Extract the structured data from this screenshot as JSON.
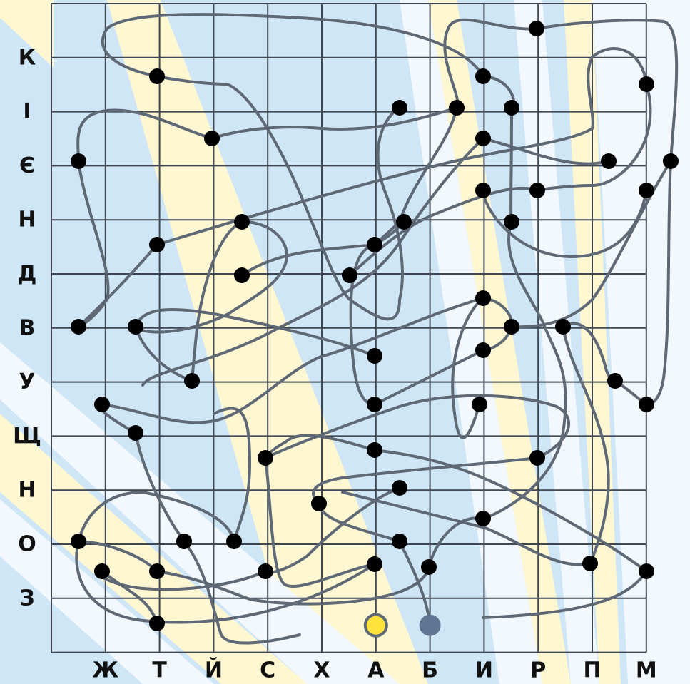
{
  "puzzle": {
    "row_labels": [
      "К",
      "І",
      "Є",
      "Н",
      "Д",
      "В",
      "У",
      "Щ",
      "Н",
      "О",
      "З"
    ],
    "col_labels": [
      "Ж",
      "Т",
      "Й",
      "С",
      "Х",
      "А",
      "Б",
      "И",
      "Р",
      "П",
      "М"
    ],
    "colors": {
      "background_blue": "#cfe6f7",
      "ray_yellow": "#fff6d2",
      "ray_white": "#f2f8fd",
      "grid_line": "#3f4752",
      "path": "#5f6875",
      "dot": "#000000",
      "start_marker": "#ffe23a",
      "end_marker": "#5f7592"
    },
    "markers": {
      "start": {
        "col": 6,
        "row": 11.5,
        "color_name": "yellow"
      },
      "end": {
        "col": 7,
        "row": 11.5,
        "color_name": "blue"
      }
    }
  }
}
